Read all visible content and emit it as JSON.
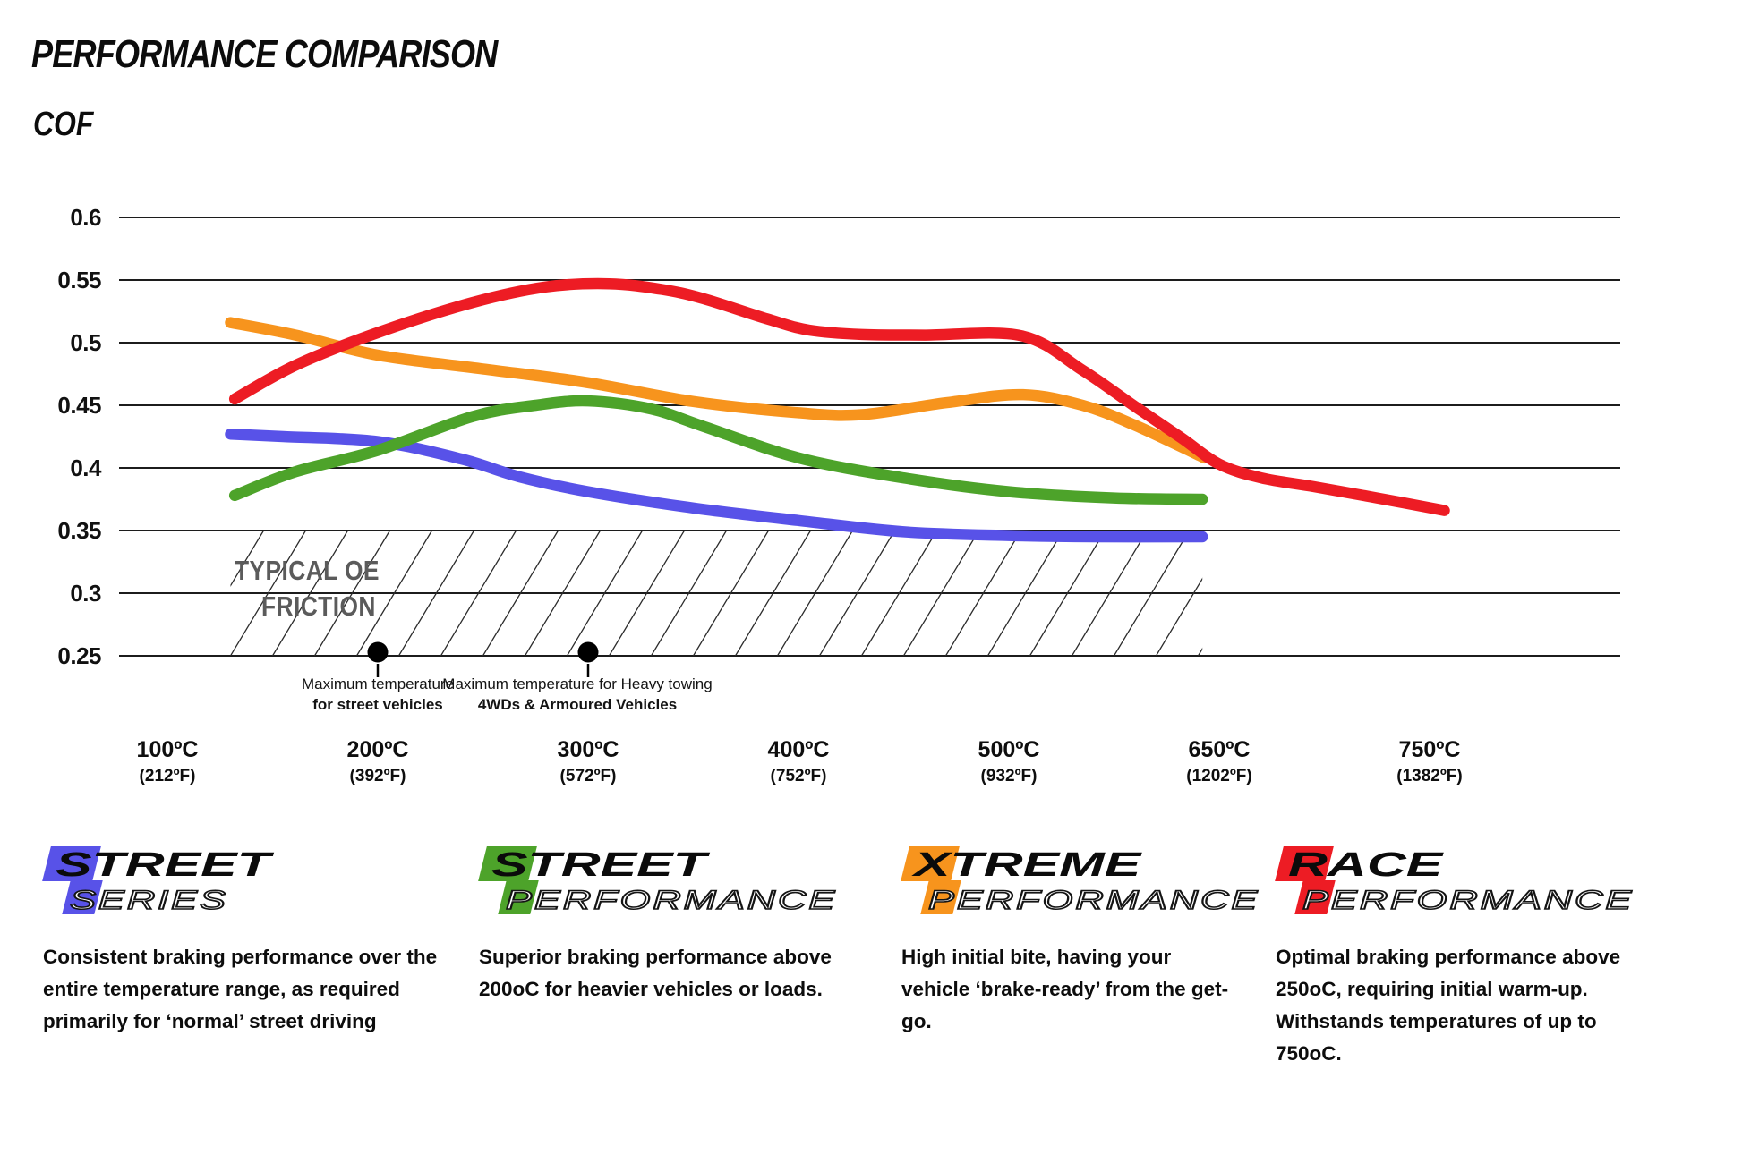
{
  "chart_data": {
    "type": "line",
    "title": "PERFORMANCE COMPARISON",
    "y_axis_label": "COF",
    "grid": "horizontal",
    "ylim": [
      0.25,
      0.6
    ],
    "y_ticks": [
      {
        "label": "0.6",
        "value": 0.6
      },
      {
        "label": "0.55",
        "value": 0.55
      },
      {
        "label": "0.5",
        "value": 0.5
      },
      {
        "label": "0.45",
        "value": 0.45
      },
      {
        "label": "0.4",
        "value": 0.4
      },
      {
        "label": "0.35",
        "value": 0.35
      },
      {
        "label": "0.3",
        "value": 0.3
      },
      {
        "label": "0.25",
        "value": 0.25
      }
    ],
    "x_categories": [
      {
        "c": "100ºC",
        "f": "(212ºF)"
      },
      {
        "c": "200ºC",
        "f": "(392ºF)"
      },
      {
        "c": "300ºC",
        "f": "(572ºF)"
      },
      {
        "c": "400ºC",
        "f": "(752ºF)"
      },
      {
        "c": "500ºC",
        "f": "(932ºF)"
      },
      {
        "c": "650ºC",
        "f": "(1202ºF)"
      },
      {
        "c": "750ºC",
        "f": "(1382ºF)"
      }
    ],
    "oe_zone": {
      "label_line1": "TYPICAL OE",
      "label_line2": "FRICTION",
      "cof_top": 0.35,
      "cof_bottom": 0.25,
      "u_start": 0.3,
      "u_end": 4.92
    },
    "series": [
      {
        "name": "Street Series",
        "color": "#5852E8",
        "points": [
          [
            0.3,
            0.427
          ],
          [
            0.55,
            0.425
          ],
          [
            1.0,
            0.421
          ],
          [
            1.4,
            0.407
          ],
          [
            1.67,
            0.393
          ],
          [
            2.0,
            0.381
          ],
          [
            2.5,
            0.368
          ],
          [
            3.0,
            0.358
          ],
          [
            3.5,
            0.349
          ],
          [
            4.0,
            0.346
          ],
          [
            4.4,
            0.345
          ],
          [
            4.92,
            0.345
          ]
        ]
      },
      {
        "name": "Xtreme Performance",
        "color": "#F7941D",
        "points": [
          [
            0.3,
            0.516
          ],
          [
            0.61,
            0.506
          ],
          [
            1.0,
            0.49
          ],
          [
            1.5,
            0.479
          ],
          [
            2.0,
            0.468
          ],
          [
            2.5,
            0.453
          ],
          [
            3.0,
            0.444
          ],
          [
            3.3,
            0.4425
          ],
          [
            3.7,
            0.452
          ],
          [
            4.06,
            0.4585
          ],
          [
            4.35,
            0.45
          ],
          [
            4.6,
            0.434
          ],
          [
            4.93,
            0.408
          ]
        ]
      },
      {
        "name": "Street Performance",
        "color": "#4DA32A",
        "points": [
          [
            0.32,
            0.378
          ],
          [
            0.61,
            0.397
          ],
          [
            1.0,
            0.414
          ],
          [
            1.45,
            0.441
          ],
          [
            1.75,
            0.45
          ],
          [
            2.0,
            0.4535
          ],
          [
            2.3,
            0.447
          ],
          [
            2.55,
            0.433
          ],
          [
            3.0,
            0.408
          ],
          [
            3.5,
            0.392
          ],
          [
            4.0,
            0.381
          ],
          [
            4.5,
            0.376
          ],
          [
            4.92,
            0.375
          ]
        ]
      },
      {
        "name": "Race Performance",
        "color": "#ED1C24",
        "points": [
          [
            0.32,
            0.455
          ],
          [
            0.61,
            0.482
          ],
          [
            1.0,
            0.508
          ],
          [
            1.45,
            0.532
          ],
          [
            1.8,
            0.5445
          ],
          [
            2.1,
            0.547
          ],
          [
            2.35,
            0.5425
          ],
          [
            2.55,
            0.535
          ],
          [
            2.85,
            0.519
          ],
          [
            3.05,
            0.51
          ],
          [
            3.3,
            0.5065
          ],
          [
            3.6,
            0.506
          ],
          [
            4.06,
            0.5055
          ],
          [
            4.35,
            0.478
          ],
          [
            4.6,
            0.449
          ],
          [
            4.82,
            0.424
          ],
          [
            5.0,
            0.403
          ],
          [
            5.2,
            0.392
          ],
          [
            5.45,
            0.385
          ],
          [
            5.75,
            0.376
          ],
          [
            6.07,
            0.366
          ]
        ]
      }
    ],
    "annotations": [
      {
        "u": 1,
        "cof": 0.25,
        "line1": "Maximum temperature",
        "line2": "for street vehicles"
      },
      {
        "u": 2,
        "cof": 0.25,
        "line1": "Maximum temperature for Heavy towing",
        "line2": "4WDs & Armoured Vehicles"
      }
    ]
  },
  "legend": [
    {
      "word": "STREET",
      "sub": "SERIES",
      "badge_color": "#5852E8",
      "description": "Consistent braking performance over the entire temperature range, as required primarily for ‘normal’ street driving"
    },
    {
      "word": "STREET",
      "sub": "PERFORMANCE",
      "badge_color": "#4DA32A",
      "description": "Superior braking performance above 200oC for heavier vehicles or loads."
    },
    {
      "word": "XTREME",
      "sub": "PERFORMANCE",
      "badge_color": "#F7941D",
      "description": "High initial bite, having your vehicle ‘brake-ready’ from the get-go."
    },
    {
      "word": "RACE",
      "sub": "PERFORMANCE",
      "badge_color": "#ED1C24",
      "description": "Optimal braking performance above 250oC, requiring initial warm-up. Withstands temperatures of up to 750oC."
    }
  ]
}
